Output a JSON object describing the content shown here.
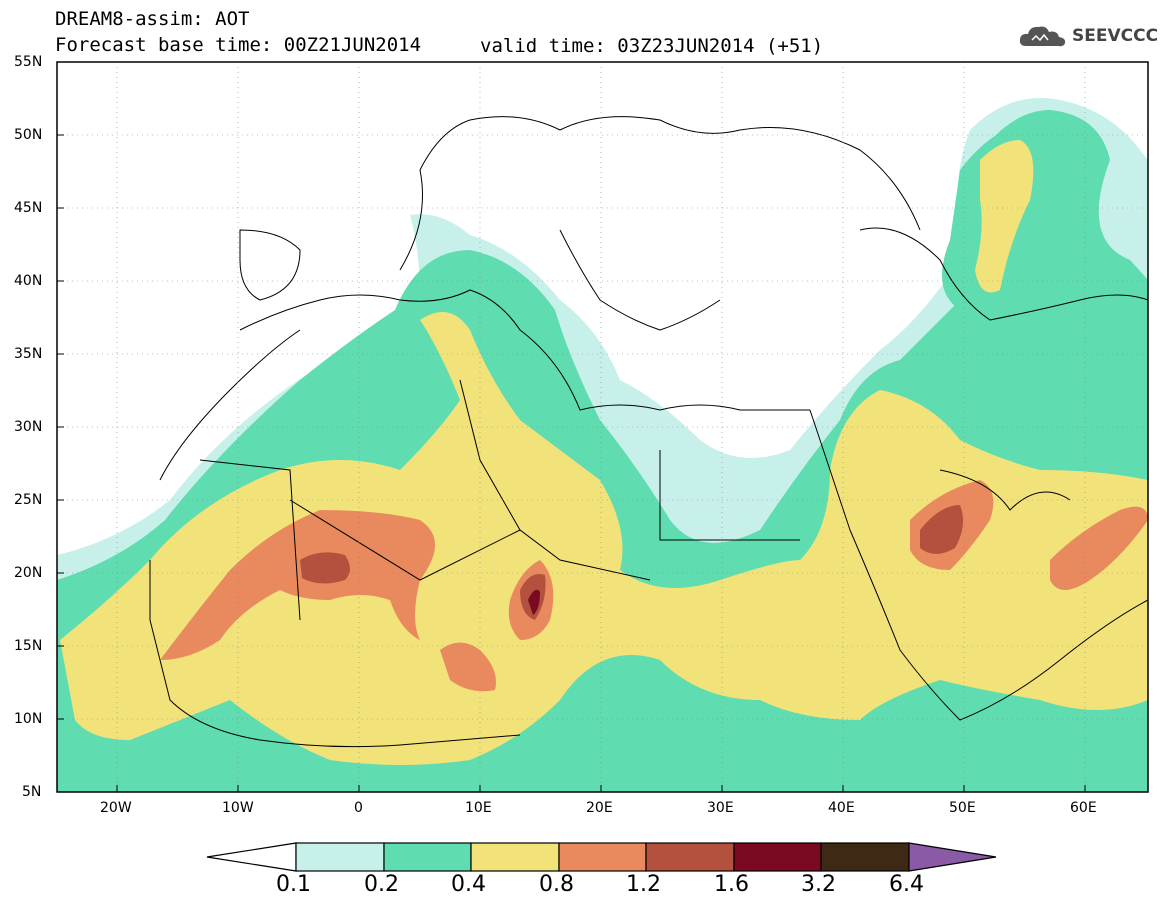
{
  "header": {
    "title_line1": "DREAM8-assim: AOT",
    "title_line2": "Forecast base time: 00Z21JUN2014",
    "valid_time": "valid time: 03Z23JUN2014 (+51)",
    "logo_text": "SEEVCCC",
    "logo_icon": "cloud-icon"
  },
  "map": {
    "lat_labels": [
      "55N",
      "50N",
      "45N",
      "40N",
      "35N",
      "30N",
      "25N",
      "20N",
      "15N",
      "10N",
      "5N"
    ],
    "lon_labels": [
      "20W",
      "10W",
      "0",
      "10E",
      "20E",
      "30E",
      "40E",
      "50E",
      "60E"
    ],
    "extent": {
      "lon_min": -25,
      "lon_max": 65,
      "lat_min": 5,
      "lat_max": 55
    }
  },
  "colorbar": {
    "labels": [
      "0.1",
      "0.2",
      "0.4",
      "0.8",
      "1.2",
      "1.6",
      "3.2",
      "6.4"
    ],
    "colors": [
      "#c8f0ea",
      "#5fdcb0",
      "#f2e27a",
      "#e98a5e",
      "#b4503e",
      "#7a0a22",
      "#3e2a14",
      "#8a5aa6"
    ]
  }
}
